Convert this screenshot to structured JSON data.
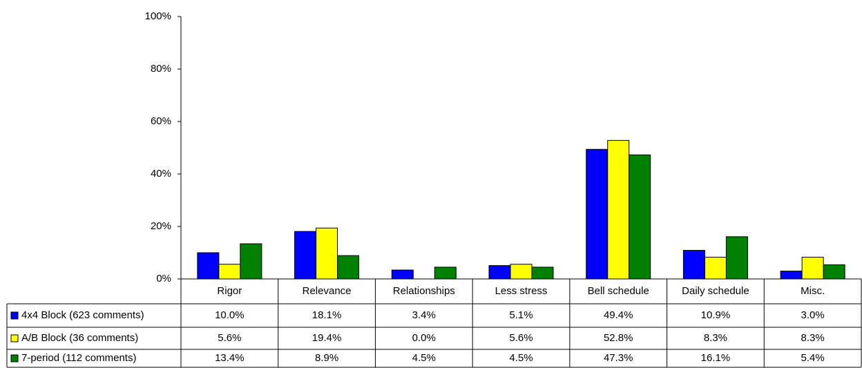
{
  "chart_data": {
    "type": "bar",
    "categories": [
      "Rigor",
      "Relevance",
      "Relationships",
      "Less stress",
      "Bell schedule",
      "Daily schedule",
      "Misc."
    ],
    "series": [
      {
        "name": "4x4 Block (623 comments)",
        "color": "#0000ff",
        "values": [
          10.0,
          18.1,
          3.4,
          5.1,
          49.4,
          10.9,
          3.0
        ],
        "value_labels": [
          "10.0%",
          "18.1%",
          "3.4%",
          "5.1%",
          "49.4%",
          "10.9%",
          "3.0%"
        ]
      },
      {
        "name": "A/B Block (36 comments)",
        "color": "#ffff00",
        "values": [
          5.6,
          19.4,
          0.0,
          5.6,
          52.8,
          8.3,
          8.3
        ],
        "value_labels": [
          "5.6%",
          "19.4%",
          "0.0%",
          "5.6%",
          "52.8%",
          "8.3%",
          "8.3%"
        ]
      },
      {
        "name": "7-period (112 comments)",
        "color": "#008000",
        "values": [
          13.4,
          8.9,
          4.5,
          4.5,
          47.3,
          16.1,
          5.4
        ],
        "value_labels": [
          "13.4%",
          "8.9%",
          "4.5%",
          "4.5%",
          "47.3%",
          "16.1%",
          "5.4%"
        ]
      }
    ],
    "ylim": [
      0,
      100
    ],
    "yticks": [
      {
        "value": 0,
        "label": "0%"
      },
      {
        "value": 20,
        "label": "20%"
      },
      {
        "value": 40,
        "label": "40%"
      },
      {
        "value": 60,
        "label": "60%"
      },
      {
        "value": 80,
        "label": "80%"
      },
      {
        "value": 100,
        "label": "100%"
      }
    ],
    "grid": false,
    "legend": "data-table"
  }
}
